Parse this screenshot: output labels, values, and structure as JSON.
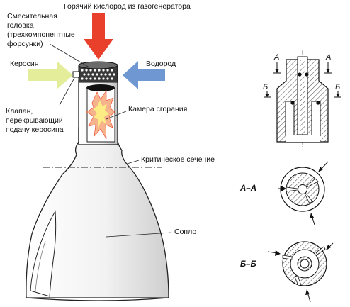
{
  "labels": {
    "hot_oxygen": "Горячий кислород из газогенератора",
    "mixing_head": [
      "Смесительная",
      "головка",
      "(трехкомпонентные",
      "форсунки)"
    ],
    "kerosene": "Керосин",
    "hydrogen": "Водород",
    "combustion_chamber": "Камера сгорания",
    "valve": [
      "Клапан,",
      "перекрывающий",
      "подачу керосина"
    ],
    "critical_section": "Критическое сечение",
    "nozzle": "Сопло"
  },
  "section_marks": {
    "a": "А",
    "b": "Б",
    "view_aa": "А–А",
    "view_bb": "Б–Б"
  },
  "colors": {
    "oxygen_arrow": "#e8402a",
    "kerosene_arrow": "#e4ee9a",
    "hydrogen_arrow": "#6f98d2",
    "flame_outer": "#f7b48c",
    "flame_inner": "#fdeb84",
    "hatch": "#555555"
  }
}
